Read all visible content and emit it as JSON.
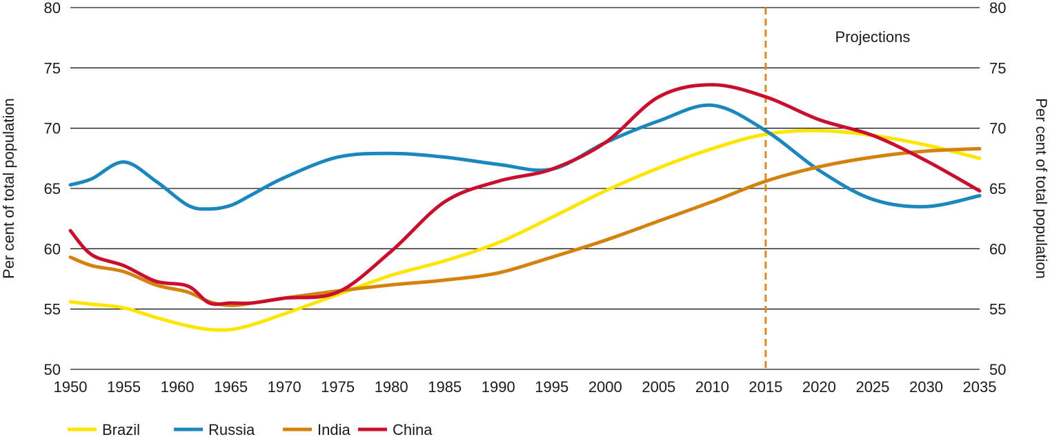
{
  "chart_data": {
    "type": "line",
    "title": "",
    "xlabel": "",
    "ylabel": "Per cent of total population",
    "ylabel_right": "Per cent of total population",
    "xlim": [
      1950,
      2035
    ],
    "ylim": [
      50,
      80
    ],
    "x_ticks": [
      "1950",
      "1955",
      "1960",
      "1965",
      "1970",
      "1975",
      "1980",
      "1985",
      "1990",
      "1995",
      "2000",
      "2005",
      "2010",
      "2015",
      "2020",
      "2025",
      "2030",
      "2035"
    ],
    "y_ticks": [
      "50",
      "55",
      "60",
      "65",
      "70",
      "75",
      "80"
    ],
    "grid": "horizontal",
    "legend_position": "bottom-left",
    "projection_start": 2015,
    "projection_label": "Projections",
    "projection_color": "#d98a1e",
    "x": [
      1950,
      1952,
      1955,
      1958,
      1961,
      1963,
      1965,
      1967,
      1970,
      1975,
      1980,
      1985,
      1990,
      1995,
      2000,
      2005,
      2010,
      2015,
      2020,
      2025,
      2030,
      2035
    ],
    "series": [
      {
        "name": "Brazil",
        "color": "#ffe500",
        "values": [
          55.6,
          55.4,
          55.1,
          54.3,
          53.6,
          53.3,
          53.3,
          53.7,
          54.6,
          56.2,
          57.8,
          59.0,
          60.5,
          62.6,
          64.8,
          66.7,
          68.3,
          69.5,
          69.8,
          69.4,
          68.6,
          67.5
        ]
      },
      {
        "name": "Russia",
        "color": "#1b87bd",
        "values": [
          65.3,
          65.8,
          67.2,
          65.6,
          63.6,
          63.3,
          63.6,
          64.5,
          65.9,
          67.6,
          67.9,
          67.6,
          67.0,
          66.6,
          68.8,
          70.6,
          71.9,
          69.8,
          66.5,
          64.1,
          63.5,
          64.4
        ]
      },
      {
        "name": "India",
        "color": "#d4820f",
        "values": [
          59.3,
          58.6,
          58.1,
          57.0,
          56.4,
          55.6,
          55.3,
          55.5,
          55.9,
          56.5,
          57.0,
          57.4,
          58.0,
          59.3,
          60.7,
          62.3,
          63.9,
          65.6,
          66.8,
          67.6,
          68.1,
          68.3
        ]
      },
      {
        "name": "China",
        "color": "#c8102e",
        "values": [
          61.5,
          59.5,
          58.6,
          57.3,
          56.9,
          55.5,
          55.5,
          55.5,
          55.9,
          56.4,
          59.8,
          63.9,
          65.6,
          66.6,
          68.8,
          72.6,
          73.6,
          72.6,
          70.7,
          69.4,
          67.3,
          64.8
        ]
      }
    ]
  }
}
